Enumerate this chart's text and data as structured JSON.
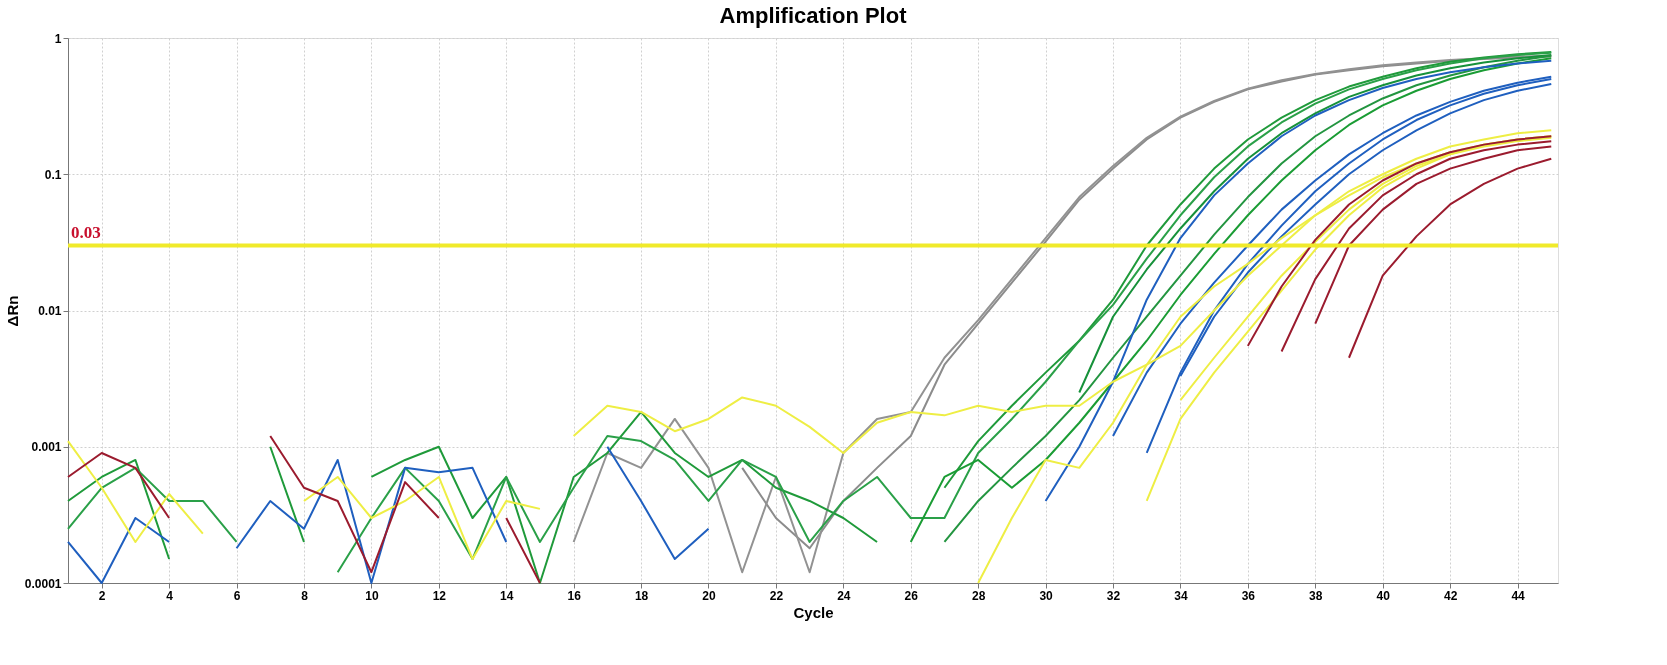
{
  "chart_data": {
    "type": "line",
    "title": "Amplification Plot",
    "xlabel": "Cycle",
    "ylabel": "ΔRn",
    "log": "y",
    "grid": true,
    "marker": "none",
    "line_style": "solid",
    "xlim": [
      1,
      45.2
    ],
    "xticks": [
      2,
      4,
      6,
      8,
      10,
      12,
      14,
      16,
      18,
      20,
      22,
      24,
      26,
      28,
      30,
      32,
      34,
      36,
      38,
      40,
      42,
      44
    ],
    "ylim": [
      0.0001,
      1
    ],
    "yticks": [
      0.0001,
      0.001,
      0.01,
      0.1,
      1
    ],
    "ref_lines": [
      {
        "axis": "y",
        "value": 0.03,
        "label": "0.03",
        "color": "#f0ea2a",
        "line_style": "solid"
      }
    ],
    "series": [
      {
        "color": "#8c8c8c",
        "x": [
          21,
          22,
          23,
          24,
          25,
          26,
          27,
          28,
          29,
          30,
          31,
          32,
          33,
          34,
          35,
          36,
          37,
          38,
          39,
          40,
          41,
          42,
          43,
          44,
          45
        ],
        "values": [
          0.0007,
          0.0003,
          0.00018,
          0.0004,
          0.0007,
          0.0012,
          0.004,
          0.008,
          0.016,
          0.032,
          0.065,
          0.11,
          0.18,
          0.26,
          0.34,
          0.42,
          0.48,
          0.54,
          0.58,
          0.62,
          0.65,
          0.68,
          0.7,
          0.72,
          0.73
        ]
      },
      {
        "color": "#929292",
        "x": [
          16,
          17,
          18,
          19,
          20,
          21,
          22,
          23,
          24,
          25,
          26,
          27,
          28,
          29,
          30,
          31,
          32,
          33,
          34,
          35,
          36,
          37,
          38,
          39,
          40,
          41,
          42,
          43,
          44,
          45
        ],
        "values": [
          0.0002,
          0.0009,
          0.0007,
          0.0016,
          0.0007,
          0.00012,
          0.0006,
          0.00012,
          0.0009,
          0.0016,
          0.0018,
          0.0045,
          0.0085,
          0.017,
          0.034,
          0.068,
          0.115,
          0.185,
          0.265,
          0.345,
          0.425,
          0.49,
          0.545,
          0.59,
          0.63,
          0.66,
          0.69,
          0.71,
          0.73,
          0.74
        ]
      },
      {
        "color": "#1f9a3a",
        "x": [
          1,
          2,
          3,
          4,
          5,
          6,
          7,
          8,
          9,
          10,
          11,
          12,
          13,
          14,
          15,
          16,
          17,
          18,
          19,
          20,
          21,
          22,
          23,
          24,
          25,
          26,
          27,
          28,
          29,
          30,
          31,
          32,
          33,
          34,
          35,
          36,
          37,
          38,
          39,
          40,
          41,
          42,
          43,
          44,
          45
        ],
        "values": [
          0.0004,
          0.0006,
          0.0008,
          0.00015,
          null,
          null,
          0.001,
          0.0002,
          null,
          0.0006,
          0.0008,
          0.001,
          0.0003,
          0.0006,
          0.0001,
          0.0006,
          0.0009,
          0.0018,
          0.0009,
          0.0006,
          0.0008,
          0.0005,
          0.0004,
          0.0003,
          0.0002,
          null,
          0.0005,
          0.0011,
          0.002,
          0.0035,
          0.006,
          0.012,
          0.03,
          0.06,
          0.11,
          0.18,
          0.26,
          0.35,
          0.44,
          0.52,
          0.6,
          0.67,
          0.72,
          0.76,
          0.79
        ]
      },
      {
        "color": "#2aa048",
        "x": [
          1,
          2,
          3,
          4,
          5,
          6,
          7,
          8,
          9,
          10,
          11,
          12,
          13,
          14,
          15,
          16,
          17,
          18,
          19,
          20,
          21,
          22,
          23,
          24,
          25,
          26,
          27,
          28,
          29,
          30,
          31,
          32,
          33,
          34,
          35,
          36,
          37,
          38,
          39,
          40,
          41,
          42,
          43,
          44,
          45
        ],
        "values": [
          0.00025,
          0.0005,
          0.0007,
          0.0004,
          0.0004,
          0.0002,
          null,
          null,
          0.00012,
          0.0003,
          0.0007,
          0.0004,
          0.00015,
          0.0006,
          0.0002,
          0.0005,
          0.0012,
          0.0011,
          0.0008,
          0.0004,
          0.0008,
          0.0006,
          0.0002,
          0.0004,
          0.0006,
          0.0003,
          0.0003,
          0.0009,
          0.0016,
          0.003,
          0.006,
          0.011,
          0.024,
          0.05,
          0.095,
          0.16,
          0.24,
          0.33,
          0.42,
          0.5,
          0.58,
          0.65,
          0.71,
          0.75,
          0.78
        ]
      },
      {
        "color": "#16913a",
        "x": [
          31,
          32,
          33,
          34,
          35,
          36,
          37,
          38,
          39,
          40,
          41,
          42,
          43,
          44,
          45
        ],
        "values": [
          0.0025,
          0.009,
          0.02,
          0.04,
          0.075,
          0.13,
          0.2,
          0.28,
          0.37,
          0.45,
          0.53,
          0.6,
          0.66,
          0.71,
          0.75
        ]
      },
      {
        "color": "#239540",
        "x": [
          27,
          28,
          29,
          30,
          31,
          32,
          33,
          34,
          35,
          36,
          37,
          38,
          39,
          40,
          41,
          42,
          43,
          44,
          45
        ],
        "values": [
          0.0002,
          0.0004,
          0.0007,
          0.0012,
          0.0022,
          0.0045,
          0.009,
          0.018,
          0.036,
          0.068,
          0.12,
          0.19,
          0.27,
          0.36,
          0.45,
          0.53,
          0.61,
          0.68,
          0.74
        ]
      },
      {
        "color": "#1a9c34",
        "x": [
          26,
          27,
          28,
          29,
          30,
          31,
          32,
          33,
          34,
          35,
          36,
          37,
          38,
          39,
          40,
          41,
          42,
          43,
          44,
          45
        ],
        "values": [
          0.0002,
          0.0006,
          0.0008,
          0.0005,
          0.0008,
          0.0015,
          0.003,
          0.006,
          0.013,
          0.026,
          0.05,
          0.09,
          0.15,
          0.23,
          0.32,
          0.41,
          0.5,
          0.58,
          0.65,
          0.71
        ]
      },
      {
        "color": "#1f5fbf",
        "x": [
          1,
          2,
          3,
          4,
          5,
          6,
          7,
          8,
          9,
          10,
          11,
          12,
          13,
          14,
          15,
          16,
          17,
          18,
          19,
          20
        ],
        "values": [
          0.0002,
          0.0001,
          0.0003,
          0.0002,
          null,
          0.00018,
          0.0004,
          0.00025,
          0.0008,
          0.0001,
          0.0007,
          0.00065,
          0.0007,
          0.0002,
          null,
          null,
          0.001,
          0.0004,
          0.00015,
          0.00025
        ]
      },
      {
        "color": "#1f5fbf",
        "x": [
          30,
          31,
          32,
          33,
          34,
          35,
          36,
          37,
          38,
          39,
          40,
          41,
          42,
          43,
          44,
          45
        ],
        "values": [
          0.0004,
          0.001,
          0.003,
          0.012,
          0.034,
          0.07,
          0.12,
          0.19,
          0.27,
          0.35,
          0.43,
          0.5,
          0.56,
          0.61,
          0.65,
          0.68
        ]
      },
      {
        "color": "#1f5fbf",
        "x": [
          32,
          33,
          34,
          35,
          36,
          37,
          38,
          39,
          40,
          41,
          42,
          43,
          44,
          45
        ],
        "values": [
          0.0012,
          0.0035,
          0.008,
          0.016,
          0.03,
          0.055,
          0.09,
          0.14,
          0.2,
          0.27,
          0.34,
          0.41,
          0.47,
          0.52
        ]
      },
      {
        "color": "#1f5fbf",
        "x": [
          33,
          34,
          35,
          36,
          37,
          38,
          39,
          40,
          41,
          42,
          43,
          44,
          45
        ],
        "values": [
          0.0009,
          0.0035,
          0.01,
          0.022,
          0.042,
          0.075,
          0.12,
          0.18,
          0.25,
          0.32,
          0.39,
          0.45,
          0.5
        ]
      },
      {
        "color": "#1f5fbf",
        "x": [
          34,
          35,
          36,
          37,
          38,
          39,
          40,
          41,
          42,
          43,
          44,
          45
        ],
        "values": [
          0.0033,
          0.009,
          0.019,
          0.035,
          0.06,
          0.1,
          0.15,
          0.21,
          0.28,
          0.35,
          0.41,
          0.46
        ]
      },
      {
        "color": "#eeee44",
        "x": [
          1,
          2,
          3,
          4,
          5,
          6,
          7,
          8,
          9,
          10,
          11,
          12,
          13,
          14,
          15
        ],
        "values": [
          0.0011,
          0.0005,
          0.0002,
          0.00045,
          0.00023,
          null,
          null,
          0.0004,
          0.0006,
          0.0003,
          0.0004,
          0.0006,
          0.00015,
          0.0004,
          0.00035
        ]
      },
      {
        "color": "#eeee44",
        "x": [
          16,
          17,
          18,
          19,
          20,
          21,
          22,
          23,
          24,
          25,
          26,
          27,
          28,
          29,
          30,
          31,
          32,
          33,
          34,
          35,
          36,
          37,
          38,
          39,
          40,
          41,
          42,
          43,
          44,
          45
        ],
        "values": [
          0.0012,
          0.002,
          0.0018,
          0.0013,
          0.0016,
          0.0023,
          0.002,
          0.0014,
          0.0009,
          0.0015,
          0.0018,
          0.0017,
          0.002,
          0.0018,
          0.002,
          0.002,
          0.003,
          0.004,
          0.0055,
          0.01,
          0.018,
          0.03,
          0.05,
          0.075,
          0.1,
          0.13,
          0.16,
          0.18,
          0.2,
          0.21
        ]
      },
      {
        "color": "#eeee44",
        "x": [
          28,
          29,
          30,
          31,
          32,
          33,
          34,
          35,
          36,
          37,
          38,
          39,
          40,
          41,
          42,
          43,
          44,
          45
        ],
        "values": [
          0.0001,
          0.0003,
          0.0008,
          0.0007,
          0.0015,
          0.004,
          0.009,
          0.015,
          0.022,
          0.034,
          0.05,
          0.07,
          0.095,
          0.12,
          0.145,
          0.165,
          0.18,
          0.19
        ]
      },
      {
        "color": "#eeee44",
        "x": [
          33,
          34,
          35,
          36,
          37,
          38,
          39,
          40,
          41,
          42,
          43,
          44,
          45
        ],
        "values": [
          0.0004,
          0.0016,
          0.0035,
          0.007,
          0.014,
          0.028,
          0.05,
          0.08,
          0.11,
          0.14,
          0.165,
          0.18,
          0.19
        ]
      },
      {
        "color": "#eeee44",
        "x": [
          34,
          35,
          36,
          37,
          38,
          39,
          40,
          41,
          42,
          43,
          44,
          45
        ],
        "values": [
          0.0022,
          0.0045,
          0.009,
          0.018,
          0.032,
          0.055,
          0.085,
          0.115,
          0.14,
          0.16,
          0.175,
          0.185
        ]
      },
      {
        "color": "#9b1b2e",
        "x": [
          1,
          2,
          3,
          4,
          5,
          6,
          7,
          8,
          9,
          10,
          11,
          12,
          13,
          14,
          15
        ],
        "values": [
          0.0006,
          0.0009,
          0.0007,
          0.0003,
          null,
          null,
          0.0012,
          0.0005,
          0.0004,
          0.00012,
          0.00055,
          0.0003,
          null,
          0.0003,
          0.0001
        ]
      },
      {
        "color": "#9b1b2e",
        "x": [
          36,
          37,
          38,
          39,
          40,
          41,
          42,
          43,
          44,
          45
        ],
        "values": [
          0.0055,
          0.015,
          0.033,
          0.06,
          0.09,
          0.12,
          0.145,
          0.165,
          0.18,
          0.19
        ]
      },
      {
        "color": "#9b1b2e",
        "x": [
          37,
          38,
          39,
          40,
          41,
          42,
          43,
          44,
          45
        ],
        "values": [
          0.005,
          0.017,
          0.04,
          0.07,
          0.1,
          0.13,
          0.15,
          0.165,
          0.175
        ]
      },
      {
        "color": "#9b1b2e",
        "x": [
          38,
          39,
          40,
          41,
          42,
          43,
          44,
          45
        ],
        "values": [
          0.008,
          0.03,
          0.055,
          0.085,
          0.11,
          0.13,
          0.15,
          0.16
        ]
      },
      {
        "color": "#9b1b2e",
        "x": [
          39,
          40,
          41,
          42,
          43,
          44,
          45
        ],
        "values": [
          0.0045,
          0.018,
          0.035,
          0.06,
          0.085,
          0.11,
          0.13
        ]
      }
    ]
  }
}
